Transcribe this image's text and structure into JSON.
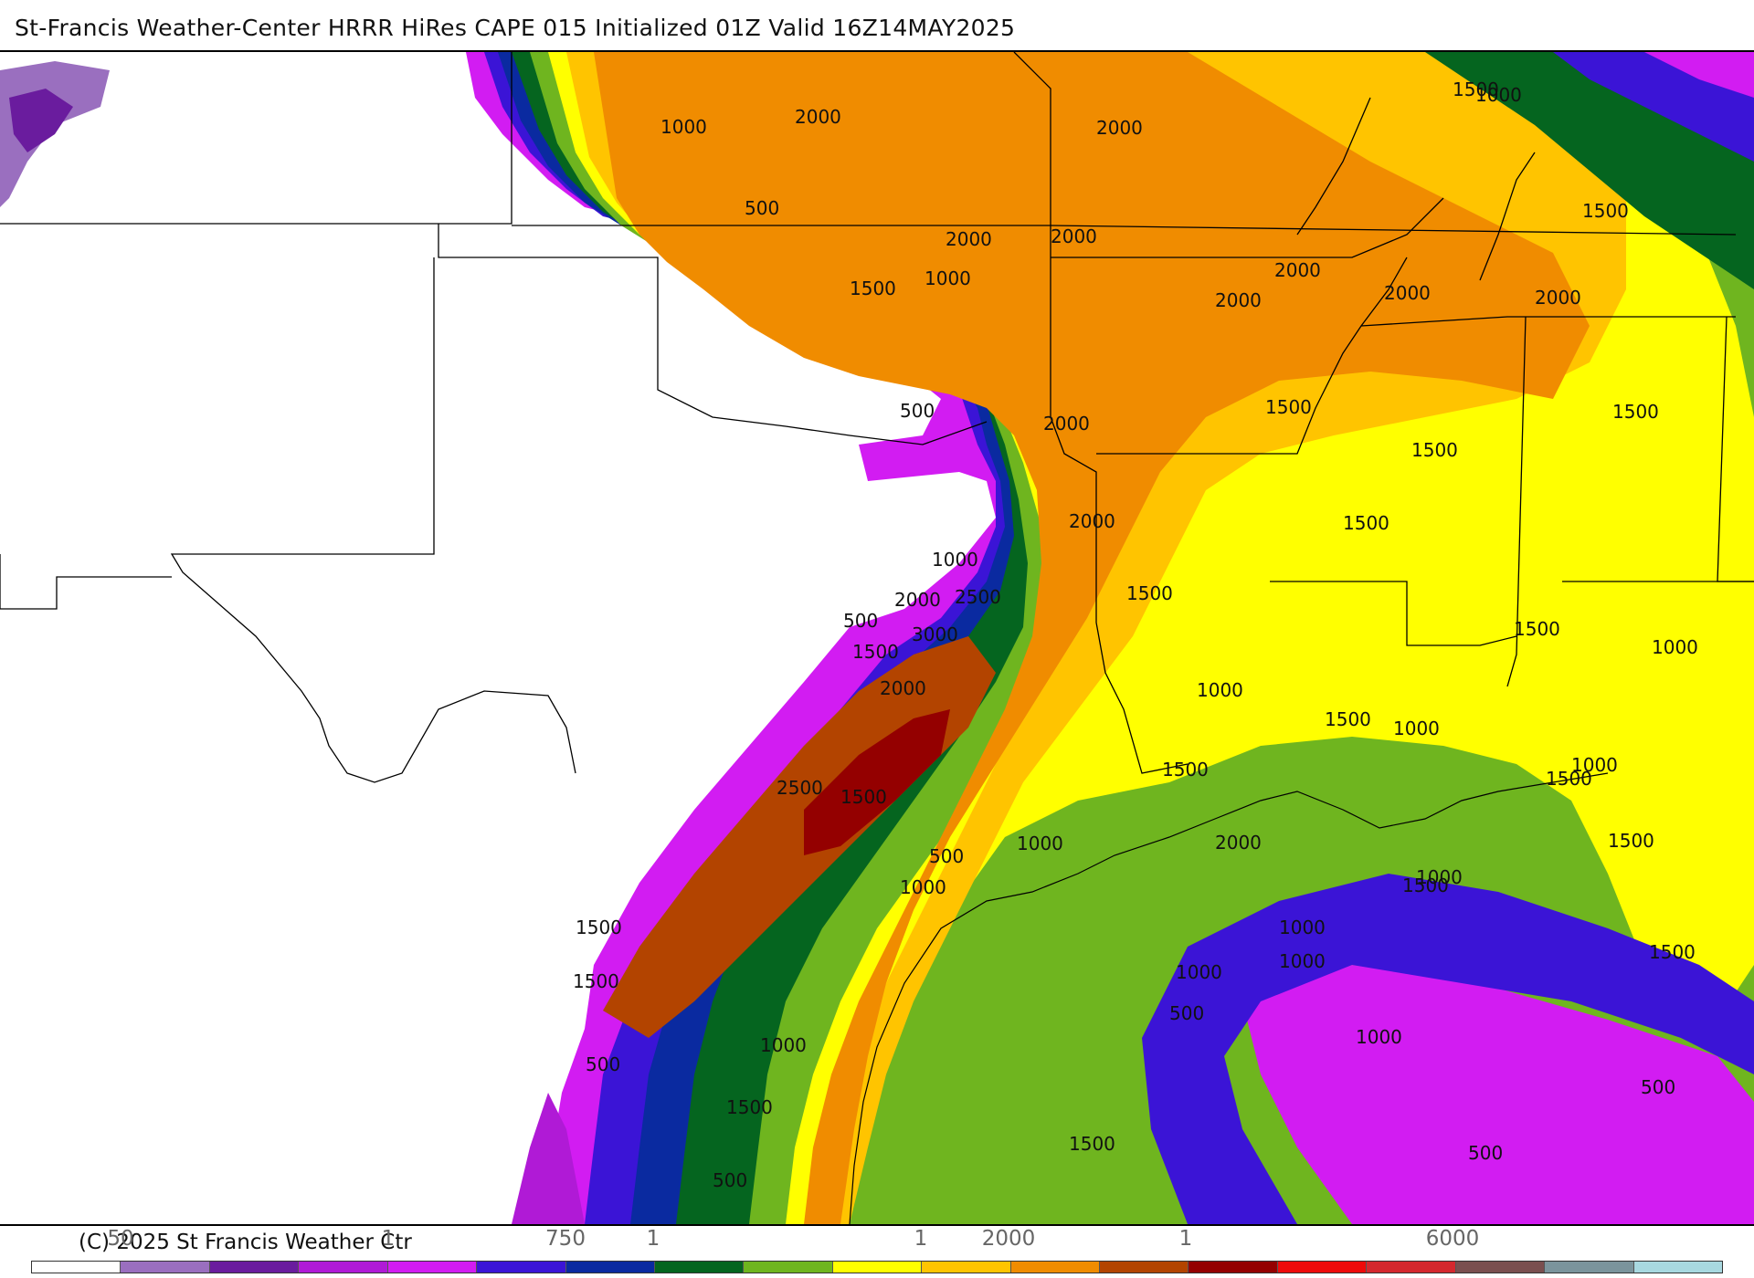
{
  "header": {
    "title": "St-Francis Weather-Center HRRR HiRes CAPE  015 Initialized  01Z Valid 16Z14MAY2025"
  },
  "footer": {
    "copyright": "(C) 2025 St Francis Weather Ctr",
    "tick_labels": [
      "50",
      "1",
      "750",
      "1",
      "1",
      "2000",
      "1",
      "6000"
    ]
  },
  "legend": {
    "colors": [
      "#ffffff",
      "#9a6fbf",
      "#6a1c9e",
      "#b01ad6",
      "#d21cf2",
      "#3b14d6",
      "#0a2aa0",
      "#05651f",
      "#6fb51f",
      "#ffff00",
      "#ffc400",
      "#f08c00",
      "#b34400",
      "#940000",
      "#ee0a0a",
      "#d4282e",
      "#7a4f4f",
      "#7b949c",
      "#a8d8e0"
    ]
  },
  "map": {
    "contour_labels": [
      "1500",
      "2000",
      "2000",
      "1000",
      "1500",
      "1000",
      "500",
      "2000",
      "2000",
      "2000",
      "1500",
      "2000",
      "2000",
      "2000",
      "1000",
      "1500",
      "2000",
      "500",
      "2000",
      "1500",
      "1500",
      "1500",
      "2000",
      "1500",
      "1000",
      "2500",
      "500",
      "2000",
      "3000",
      "1500",
      "1500",
      "1500",
      "1000",
      "1000",
      "2000",
      "1500",
      "2500",
      "1500",
      "1000",
      "1500",
      "1500",
      "1000",
      "1000",
      "2000",
      "500",
      "1000",
      "1000",
      "1500",
      "1000",
      "1500",
      "1000",
      "500",
      "1000",
      "500",
      "1000",
      "1500",
      "1000",
      "500",
      "500",
      "500",
      "1500",
      "1500",
      "1500",
      "1500"
    ]
  }
}
